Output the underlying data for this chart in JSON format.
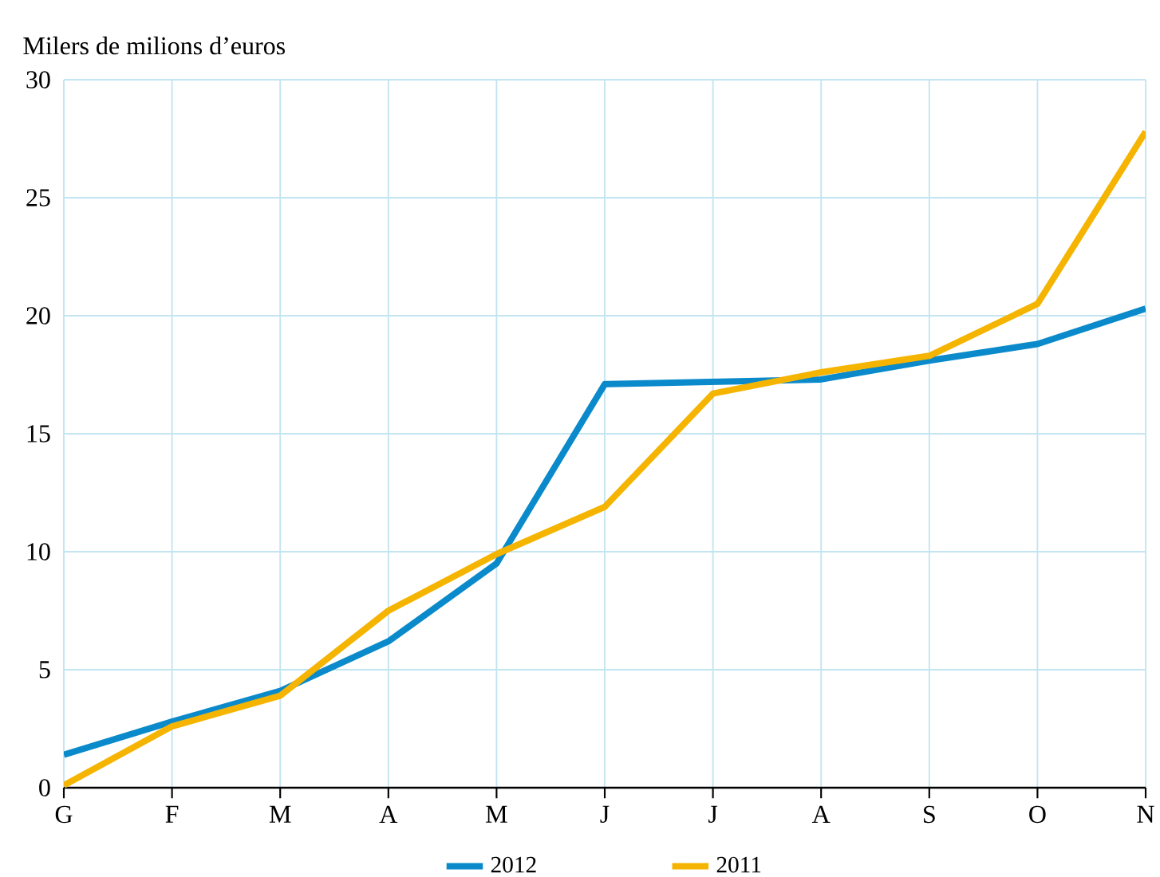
{
  "chart_data": {
    "type": "line",
    "ylabel": "Milers de milions d’euros",
    "categories": [
      "G",
      "F",
      "M",
      "A",
      "M",
      "J",
      "J",
      "A",
      "S",
      "O",
      "N"
    ],
    "series": [
      {
        "name": "2012",
        "color": "#0a8acb",
        "values": [
          1.4,
          2.8,
          4.1,
          6.2,
          9.5,
          17.1,
          17.2,
          17.3,
          18.1,
          18.8,
          20.3
        ]
      },
      {
        "name": "2011",
        "color": "#f5b400",
        "values": [
          0.1,
          2.6,
          3.9,
          7.5,
          9.9,
          11.9,
          16.7,
          17.6,
          18.3,
          20.5,
          27.8
        ]
      }
    ],
    "ylim": [
      0,
      30
    ],
    "yticks": [
      0,
      5,
      10,
      15,
      20,
      25,
      30
    ],
    "grid": true,
    "legend": "bottom",
    "marker": "none",
    "line_style": "solid"
  }
}
